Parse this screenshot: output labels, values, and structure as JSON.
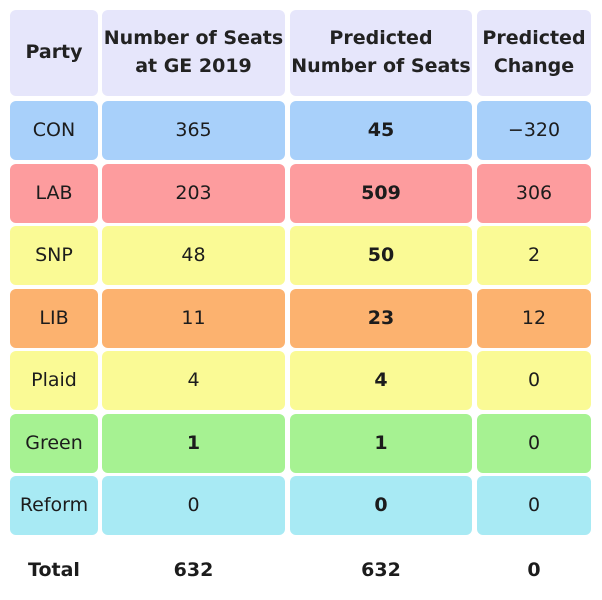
{
  "headers": [
    "Party",
    "Number of Seats\nat GE 2019",
    "Predicted\nNumber of Seats",
    "Predicted\nChange"
  ],
  "rows": [
    {
      "party": "CON",
      "seats_2019": "365",
      "predicted": "45",
      "change": "−320",
      "color": "#a8d0fa"
    },
    {
      "party": "LAB",
      "seats_2019": "203",
      "predicted": "509",
      "change": "306",
      "color": "#fd9c9e"
    },
    {
      "party": "SNP",
      "seats_2019": "48",
      "predicted": "50",
      "change": "2",
      "color": "#fafa95"
    },
    {
      "party": "LIB",
      "seats_2019": "11",
      "predicted": "23",
      "change": "12",
      "color": "#fcb26f"
    },
    {
      "party": "Plaid",
      "seats_2019": "4",
      "predicted": "4",
      "change": "0",
      "color": "#fafa95"
    },
    {
      "party": "Green",
      "seats_2019": "1",
      "predicted": "1",
      "change": "0",
      "color": "#a6f292"
    },
    {
      "party": "Reform",
      "seats_2019": "0",
      "predicted": "0",
      "change": "0",
      "color": "#a8eaf4"
    }
  ],
  "total": {
    "label": "Total",
    "seats_2019": "632",
    "predicted": "632",
    "change": "0"
  },
  "header_color": "#e6e6fb"
}
